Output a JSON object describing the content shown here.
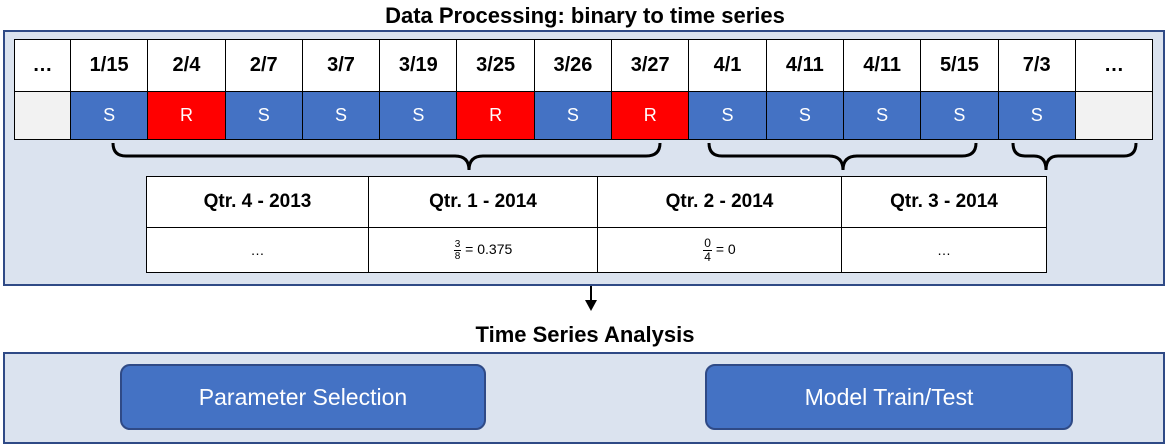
{
  "titles": {
    "top": "Data Processing: binary to time series",
    "bottom": "Time Series Analysis"
  },
  "date_table": {
    "headers": [
      "…",
      "1/15",
      "2/4",
      "2/7",
      "3/7",
      "3/19",
      "3/25",
      "3/26",
      "3/27",
      "4/1",
      "4/11",
      "4/11",
      "5/15",
      "7/3",
      "…"
    ],
    "values": [
      "",
      "S",
      "R",
      "S",
      "S",
      "S",
      "R",
      "S",
      "R",
      "S",
      "S",
      "S",
      "S",
      "S",
      ""
    ]
  },
  "quarter_table": {
    "headers": [
      "Qtr. 4 - 2013",
      "Qtr. 1 - 2014",
      "Qtr. 2 - 2014",
      "Qtr. 3 - 2014"
    ],
    "q4_value": "…",
    "q1_num": "3",
    "q1_den": "8",
    "q1_result": "= 0.375",
    "q2_num": "0",
    "q2_den": "4",
    "q2_result": "= 0",
    "q3_value": "…"
  },
  "boxes": {
    "parameter_selection": "Parameter Selection",
    "model_train_test": "Model Train/Test"
  },
  "colors": {
    "S": "#4472c4",
    "R": "#ff0000",
    "panel_fill": "#dbe3ef",
    "panel_border": "#2f4a86"
  }
}
